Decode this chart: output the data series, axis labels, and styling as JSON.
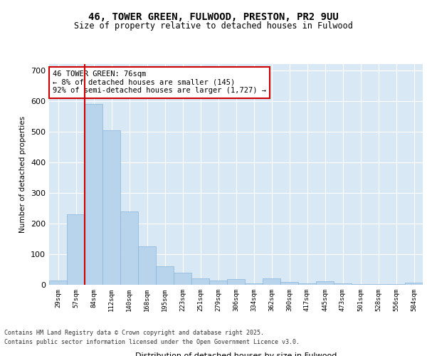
{
  "title_line1": "46, TOWER GREEN, FULWOOD, PRESTON, PR2 9UU",
  "title_line2": "Size of property relative to detached houses in Fulwood",
  "xlabel": "Distribution of detached houses by size in Fulwood",
  "ylabel": "Number of detached properties",
  "categories": [
    "29sqm",
    "57sqm",
    "84sqm",
    "112sqm",
    "140sqm",
    "168sqm",
    "195sqm",
    "223sqm",
    "251sqm",
    "279sqm",
    "306sqm",
    "334sqm",
    "362sqm",
    "390sqm",
    "417sqm",
    "445sqm",
    "473sqm",
    "501sqm",
    "528sqm",
    "556sqm",
    "584sqm"
  ],
  "values": [
    15,
    230,
    590,
    505,
    240,
    125,
    60,
    40,
    22,
    15,
    18,
    5,
    20,
    10,
    5,
    12,
    5,
    3,
    3,
    3,
    7
  ],
  "bar_color": "#b8d4ed",
  "bar_edge_color": "#8ab4d8",
  "vline_color": "#cc0000",
  "vline_x": 1.5,
  "ylim": [
    0,
    720
  ],
  "yticks": [
    0,
    100,
    200,
    300,
    400,
    500,
    600,
    700
  ],
  "annotation_text": "46 TOWER GREEN: 76sqm\n← 8% of detached houses are smaller (145)\n92% of semi-detached houses are larger (1,727) →",
  "annotation_box_color": "#ffffff",
  "annotation_box_edge_color": "#cc0000",
  "footer_line1": "Contains HM Land Registry data © Crown copyright and database right 2025.",
  "footer_line2": "Contains public sector information licensed under the Open Government Licence v3.0.",
  "plot_bg_color": "#d9e8f5",
  "fig_bg_color": "#ffffff",
  "grid_color": "#ffffff"
}
